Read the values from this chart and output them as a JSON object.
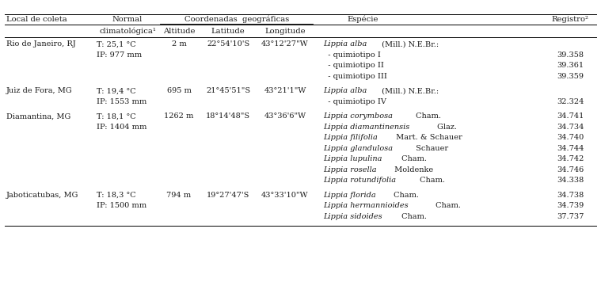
{
  "bg_color": "#ffffff",
  "text_color": "#1a1a1a",
  "font_size": 7.0,
  "header_font_size": 7.2,
  "font_family": "DejaVu Serif",
  "rows": [
    {
      "local": "Rio de Janeiro, RJ",
      "normal_line1": "T: 25,1 °C",
      "normal_line2": "IP: 977 mm",
      "altitude": "2 m",
      "latitude": "22°54'10'S",
      "longitude": "43°12'27\"W",
      "species": [
        {
          "italic": "Lippia alba",
          "normal": " (Mill.) N.E.Br.:"
        },
        {
          "italic": "",
          "normal": "  - quimiotipo I"
        },
        {
          "italic": "",
          "normal": "  - quimiotipo II"
        },
        {
          "italic": "",
          "normal": "  - quimiotipo III"
        }
      ],
      "registro": [
        "",
        "39.358",
        "39.361",
        "39.359"
      ]
    },
    {
      "local": "Juiz de Fora, MG",
      "normal_line1": "T: 19,4 °C",
      "normal_line2": "IP: 1553 mm",
      "altitude": "695 m",
      "latitude": "21°45'51\"S",
      "longitude": "43°21'1\"W",
      "species": [
        {
          "italic": "Lippia alba",
          "normal": " (Mill.) N.E.Br.:"
        },
        {
          "italic": "",
          "normal": "  - quimiotipo IV"
        }
      ],
      "registro": [
        "",
        "32.324"
      ]
    },
    {
      "local": "Diamantina, MG",
      "normal_line1": "T: 18,1 °C",
      "normal_line2": "IP: 1404 mm",
      "altitude": "1262 m",
      "latitude": "18°14'48\"S",
      "longitude": "43°36'6\"W",
      "species": [
        {
          "italic": "Lippia corymbosa",
          "normal": " Cham."
        },
        {
          "italic": "Lippia diamantinensis",
          "normal": " Glaz."
        },
        {
          "italic": "Lippia filifolia",
          "normal": " Mart. & Schauer"
        },
        {
          "italic": "Lippia glandulosa",
          "normal": " Schauer"
        },
        {
          "italic": "Lippia lupulina",
          "normal": " Cham."
        },
        {
          "italic": "Lippia rosella",
          "normal": " Moldenke"
        },
        {
          "italic": "Lippia rotundifolia",
          "normal": " Cham."
        }
      ],
      "registro": [
        "34.741",
        "34.734",
        "34.740",
        "34.744",
        "34.742",
        "34.746",
        "34.338"
      ]
    },
    {
      "local": "Jaboticatubas, MG",
      "normal_line1": "T: 18,3 °C",
      "normal_line2": "IP: 1500 mm",
      "altitude": "794 m",
      "latitude": "19°27'47'S",
      "longitude": "43°33'10\"W",
      "species": [
        {
          "italic": "Lippia florida",
          "normal": " Cham."
        },
        {
          "italic": "Lippia hermannioides",
          "normal": " Cham."
        },
        {
          "italic": "Lippia sidoides",
          "normal": " Cham."
        }
      ],
      "registro": [
        "34.738",
        "34.739",
        "37.737"
      ]
    }
  ]
}
